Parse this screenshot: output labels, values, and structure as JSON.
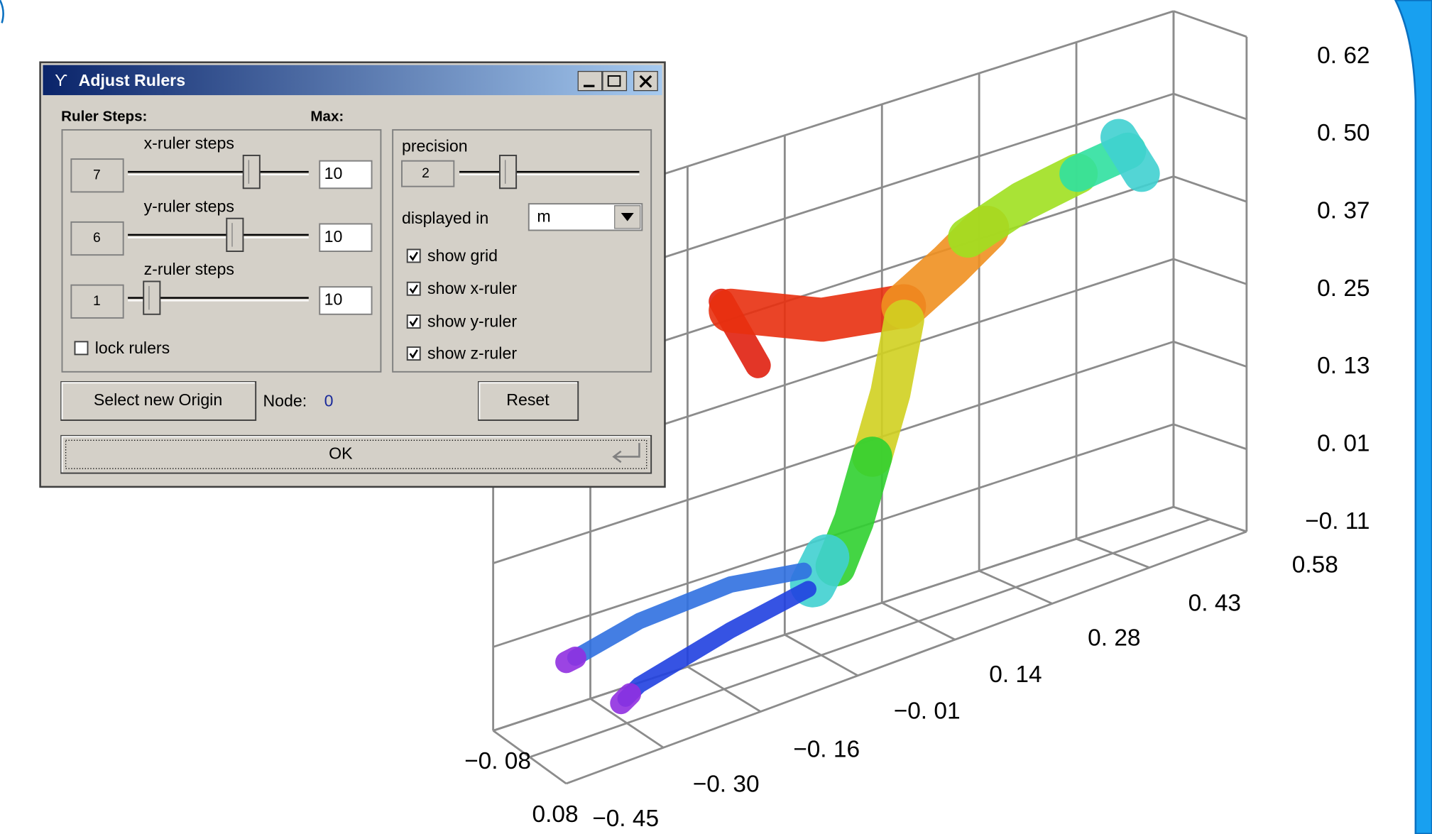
{
  "window": {
    "title": "Adjust Rulers"
  },
  "ruler_steps": {
    "label": "Ruler Steps:",
    "max_label": "Max:",
    "sliders": [
      {
        "label": "x-ruler steps",
        "value": 7,
        "max": 10
      },
      {
        "label": "y-ruler steps",
        "value": 6,
        "max": 10
      },
      {
        "label": "z-ruler steps",
        "value": 1,
        "max": 10
      }
    ],
    "lock_rulers": {
      "label": "lock rulers",
      "checked": false
    }
  },
  "display": {
    "precision_label": "precision",
    "precision": 2,
    "displayed_in_label": "displayed in",
    "unit": "m",
    "checkboxes": [
      {
        "label": "show grid",
        "checked": true
      },
      {
        "label": "show x-ruler",
        "checked": true
      },
      {
        "label": "show y-ruler",
        "checked": true
      },
      {
        "label": "show z-ruler",
        "checked": true
      }
    ]
  },
  "buttons": {
    "select_origin": "Select new Origin",
    "node_label": "Node:",
    "node": 0,
    "reset": "Reset",
    "ok": "OK"
  },
  "plot": {
    "z_labels": [
      "0. 62",
      "0. 50",
      "0. 37",
      "0. 25",
      "0. 13",
      "0. 01",
      "−0. 11"
    ],
    "y_labels": [
      "0.58",
      "0. 43",
      "0. 28",
      "0. 14",
      "−0. 01",
      "−0. 16",
      "−0. 30",
      "−0. 45"
    ],
    "x_labels": [
      "−0. 08",
      "0.08"
    ]
  }
}
